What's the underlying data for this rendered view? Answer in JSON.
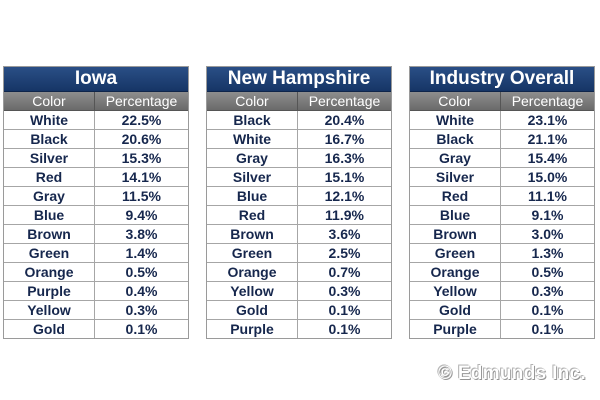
{
  "chart_data": [
    {
      "type": "table",
      "title": "Iowa",
      "columns": [
        "Color",
        "Percentage"
      ],
      "rows": [
        [
          "White",
          "22.5%"
        ],
        [
          "Black",
          "20.6%"
        ],
        [
          "Silver",
          "15.3%"
        ],
        [
          "Red",
          "14.1%"
        ],
        [
          "Gray",
          "11.5%"
        ],
        [
          "Blue",
          "9.4%"
        ],
        [
          "Brown",
          "3.8%"
        ],
        [
          "Green",
          "1.4%"
        ],
        [
          "Orange",
          "0.5%"
        ],
        [
          "Purple",
          "0.4%"
        ],
        [
          "Yellow",
          "0.3%"
        ],
        [
          "Gold",
          "0.1%"
        ]
      ]
    },
    {
      "type": "table",
      "title": "New Hampshire",
      "columns": [
        "Color",
        "Percentage"
      ],
      "rows": [
        [
          "Black",
          "20.4%"
        ],
        [
          "White",
          "16.7%"
        ],
        [
          "Gray",
          "16.3%"
        ],
        [
          "Silver",
          "15.1%"
        ],
        [
          "Blue",
          "12.1%"
        ],
        [
          "Red",
          "11.9%"
        ],
        [
          "Brown",
          "3.6%"
        ],
        [
          "Green",
          "2.5%"
        ],
        [
          "Orange",
          "0.7%"
        ],
        [
          "Yellow",
          "0.3%"
        ],
        [
          "Gold",
          "0.1%"
        ],
        [
          "Purple",
          "0.1%"
        ]
      ]
    },
    {
      "type": "table",
      "title": "Industry Overall",
      "columns": [
        "Color",
        "Percentage"
      ],
      "rows": [
        [
          "White",
          "23.1%"
        ],
        [
          "Black",
          "21.1%"
        ],
        [
          "Gray",
          "15.4%"
        ],
        [
          "Silver",
          "15.0%"
        ],
        [
          "Red",
          "11.1%"
        ],
        [
          "Blue",
          "9.1%"
        ],
        [
          "Brown",
          "3.0%"
        ],
        [
          "Green",
          "1.3%"
        ],
        [
          "Orange",
          "0.5%"
        ],
        [
          "Yellow",
          "0.3%"
        ],
        [
          "Gold",
          "0.1%"
        ],
        [
          "Purple",
          "0.1%"
        ]
      ]
    }
  ],
  "watermark": "© Edmunds Inc.",
  "colors": {
    "title_bg": "#1f4277",
    "header_bg": "#7d7d7d",
    "cell_text": "#16274d"
  }
}
